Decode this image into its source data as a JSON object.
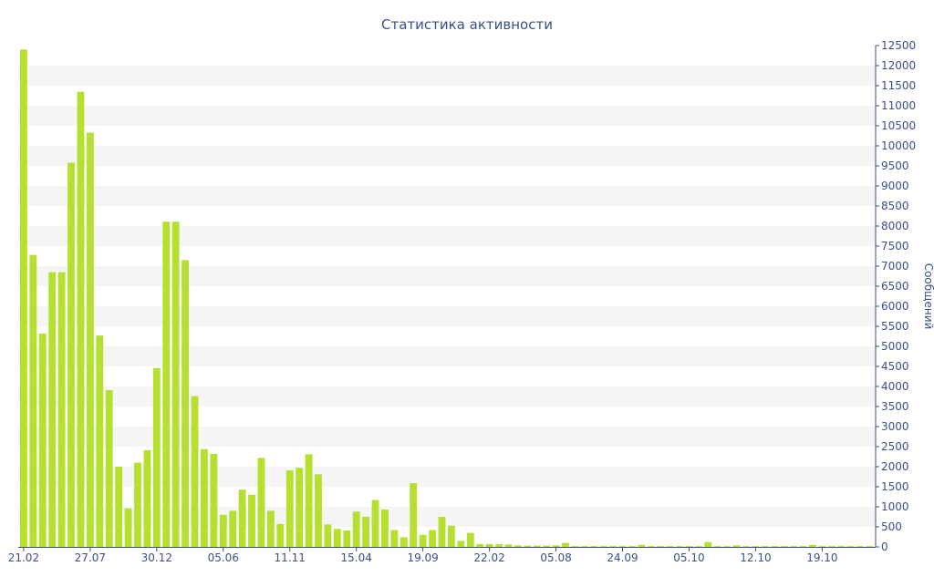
{
  "chart_data": {
    "type": "bar",
    "title": "Статистика активности",
    "ylabel": "Сообщений",
    "xlabel": "",
    "ylim": [
      0,
      12500
    ],
    "yticks": [
      0,
      500,
      1000,
      1500,
      2000,
      2500,
      3000,
      3500,
      4000,
      4500,
      5000,
      5500,
      6000,
      6500,
      7000,
      7500,
      8000,
      8500,
      9000,
      9500,
      10000,
      10500,
      11000,
      11500,
      12000,
      12500
    ],
    "x_tick_labels": [
      {
        "label": "21.02",
        "index": 0
      },
      {
        "label": "27.07",
        "index": 7
      },
      {
        "label": "30.12",
        "index": 14
      },
      {
        "label": "05.06",
        "index": 21
      },
      {
        "label": "11.11",
        "index": 28
      },
      {
        "label": "15.04",
        "index": 35
      },
      {
        "label": "19.09",
        "index": 42
      },
      {
        "label": "22.02",
        "index": 49
      },
      {
        "label": "05.08",
        "index": 56
      },
      {
        "label": "24.09",
        "index": 63
      },
      {
        "label": "05.10",
        "index": 70
      },
      {
        "label": "12.10",
        "index": 77
      },
      {
        "label": "19.10",
        "index": 84
      }
    ],
    "grid": "horizontal alternating bands",
    "bar_color": "#b5e030",
    "text_color": "#3b4f8a",
    "values": [
      12400,
      7280,
      5320,
      6850,
      6850,
      9580,
      11350,
      10330,
      5270,
      3910,
      2000,
      960,
      2100,
      2410,
      4460,
      8110,
      8110,
      7150,
      3760,
      2440,
      2320,
      800,
      900,
      1430,
      1300,
      2220,
      900,
      570,
      1910,
      1970,
      2310,
      1810,
      560,
      450,
      410,
      880,
      750,
      1170,
      930,
      420,
      240,
      1590,
      300,
      420,
      750,
      530,
      150,
      350,
      70,
      70,
      70,
      60,
      40,
      30,
      30,
      30,
      40,
      100,
      20,
      20,
      20,
      20,
      20,
      20,
      20,
      50,
      20,
      20,
      20,
      20,
      20,
      20,
      120,
      20,
      20,
      40,
      20,
      20,
      20,
      20,
      20,
      20,
      20,
      50,
      20,
      20,
      20,
      20,
      20,
      20
    ]
  }
}
